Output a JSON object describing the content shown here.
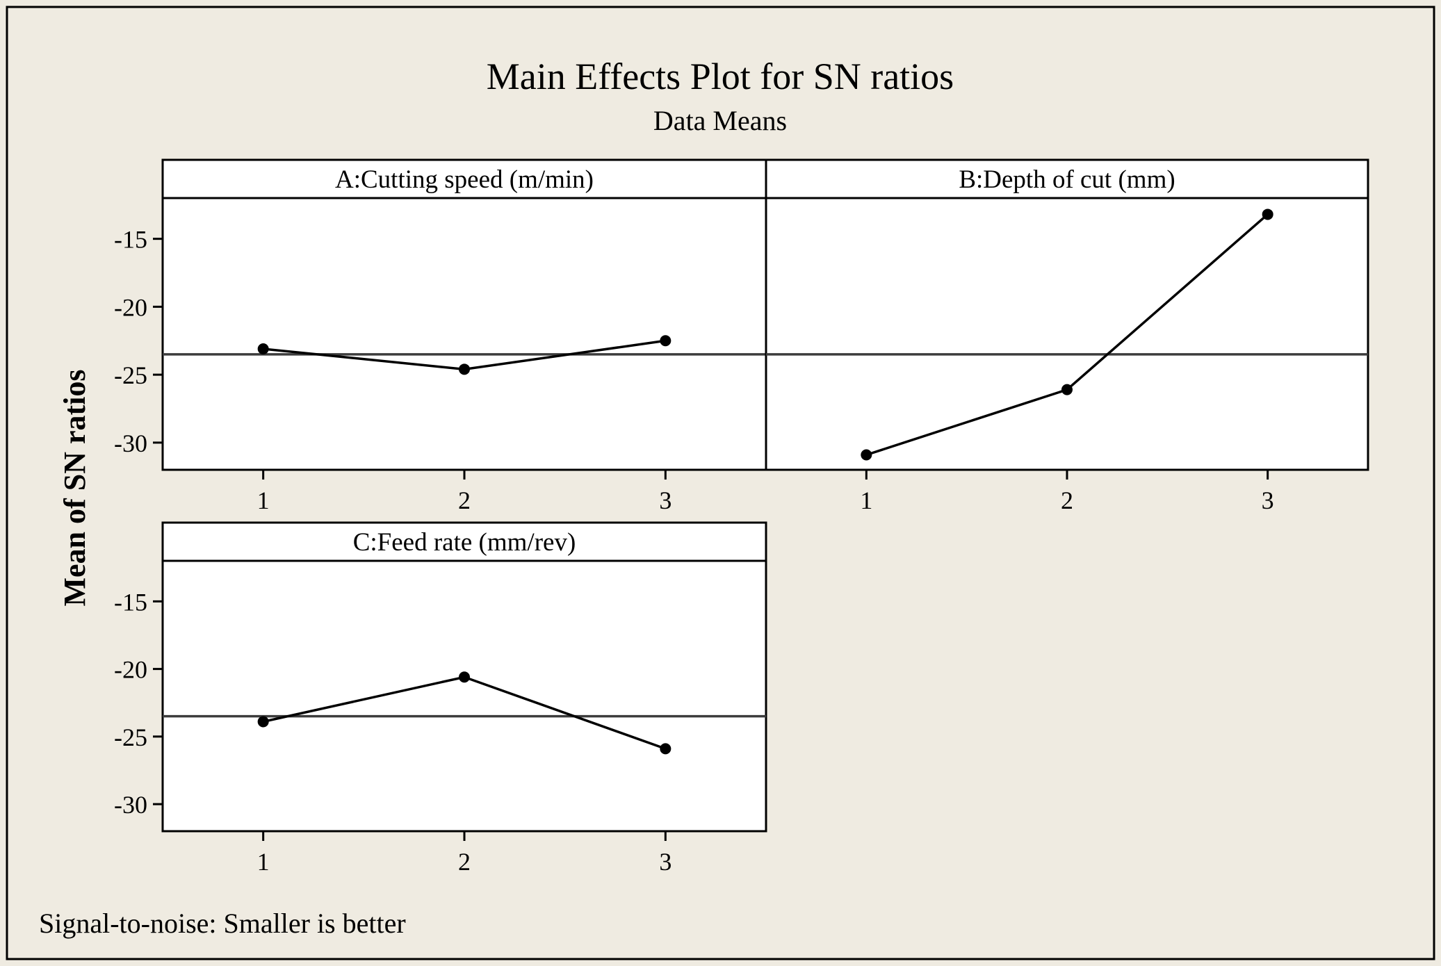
{
  "title": "Main Effects Plot for SN ratios",
  "subtitle": "Data Means",
  "footnote": "Signal-to-noise: Smaller is better",
  "colors": {
    "background": "#efebe1",
    "panel": "#ffffff",
    "line": "#000000",
    "mean_line": "#3c3c3c"
  },
  "chart_data": {
    "type": "line",
    "ylabel": "Mean of SN ratios",
    "ylim": [
      -32,
      -12
    ],
    "yticks": [
      -15,
      -20,
      -25,
      -30
    ],
    "ytick_labels": [
      "-15",
      "-20",
      "-25",
      "-30"
    ],
    "x_levels": [
      1,
      2,
      3
    ],
    "x_level_labels": [
      "1",
      "2",
      "3"
    ],
    "overall_mean": -23.5,
    "panels": [
      {
        "title": "A:Cutting speed (m/min)",
        "values": [
          -23.1,
          -24.6,
          -22.5
        ]
      },
      {
        "title": "B:Depth of cut (mm)",
        "values": [
          -30.9,
          -26.1,
          -13.2
        ]
      },
      {
        "title": "C:Feed rate (mm/rev)",
        "values": [
          -23.9,
          -20.6,
          -25.9
        ]
      }
    ]
  }
}
